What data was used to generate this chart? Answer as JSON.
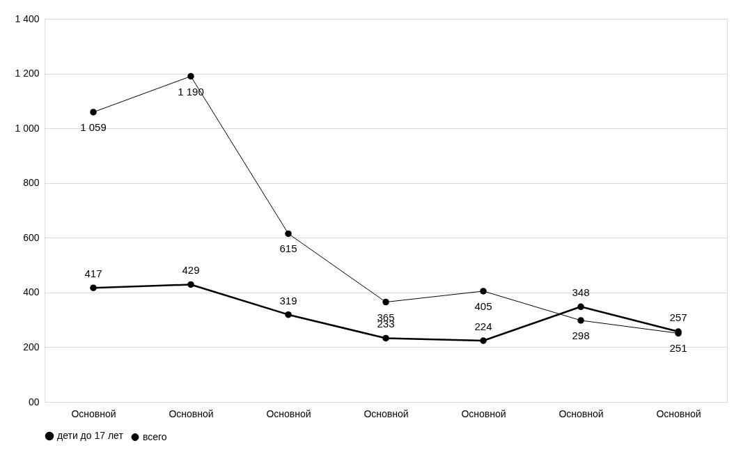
{
  "chart_data": {
    "type": "line",
    "categories": [
      "Основной",
      "Основной",
      "Основной",
      "Основной",
      "Основной",
      "Основной",
      "Основной"
    ],
    "series": [
      {
        "name": "дети до 17 лет",
        "color": "#000000",
        "values": [
          417,
          429,
          319,
          233,
          224,
          348,
          257
        ]
      },
      {
        "name": "всего",
        "color": "#000000",
        "values": [
          1059,
          1190,
          615,
          365,
          405,
          298,
          251
        ]
      }
    ],
    "ylim": [
      0,
      1400
    ],
    "yticks": [
      {
        "value": 0,
        "label": "00"
      },
      200,
      400,
      600,
      800,
      {
        "value": 1000,
        "label": "1 000"
      },
      {
        "value": 1200,
        "label": "1 200"
      },
      {
        "value": 1400,
        "label": "1 400"
      }
    ],
    "data_labels": true,
    "grid": "y",
    "legend": "bottom",
    "marker": "circle",
    "line_style": "solid"
  }
}
